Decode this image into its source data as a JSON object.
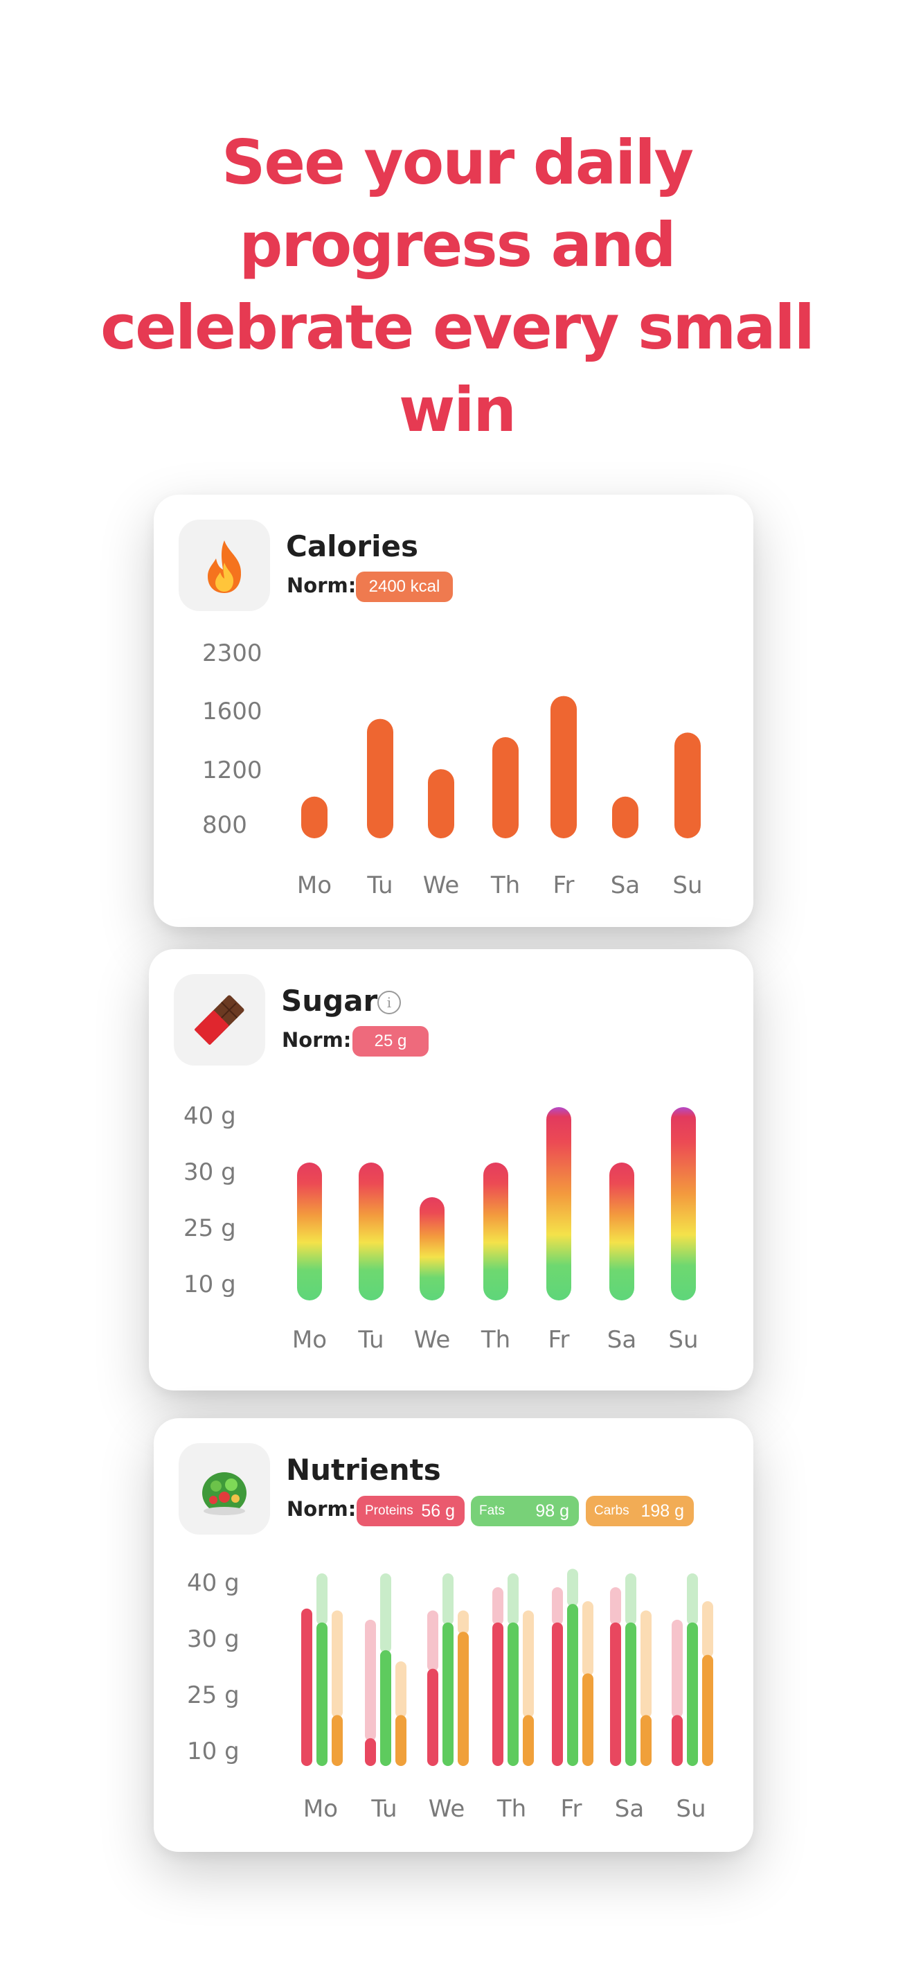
{
  "headline": {
    "line1": "See your daily",
    "line2": "progress and",
    "line3": "celebrate every small",
    "line4": "win"
  },
  "colors": {
    "headline": "#e63a52",
    "calories_bar": "#ee6631",
    "calories_pill": "#ef7a4f",
    "sugar_pill": "#ee6a7c",
    "protein": "#e8475f",
    "fat": "#5ecb5e",
    "carb": "#f0a03a"
  },
  "calories": {
    "icon": "fire-emoji",
    "title": "Calories",
    "norm_label": "Norm:",
    "norm_value": "2400 kcal"
  },
  "sugar": {
    "icon": "chocolate-bar-emoji",
    "title": "Sugar",
    "info_icon": "info-icon",
    "info_glyph": "i",
    "norm_label": "Norm:",
    "norm_value": "25 g"
  },
  "nutrients": {
    "icon": "salad-emoji",
    "title": "Nutrients",
    "norm_label": "Norm:",
    "proteins_label": "Proteins",
    "proteins_value": "56 g",
    "fats_label": "Fats",
    "fats_value": "98 g",
    "carbs_label": "Carbs",
    "carbs_value": "198 g"
  },
  "chart_data": [
    {
      "type": "bar",
      "name": "calories",
      "categories": [
        "Mo",
        "Tu",
        "We",
        "Th",
        "Fr",
        "Sa",
        "Su"
      ],
      "y_ticks": [
        "2300",
        "1600",
        "1200",
        "800"
      ],
      "values": [
        1150,
        2000,
        1450,
        1800,
        2250,
        1150,
        1850
      ],
      "ylim": [
        800,
        2300
      ]
    },
    {
      "type": "bar",
      "name": "sugar",
      "categories": [
        "Mo",
        "Tu",
        "We",
        "Th",
        "Fr",
        "Sa",
        "Su"
      ],
      "y_ticks": [
        "40 g",
        "30 g",
        "25 g",
        "10 g"
      ],
      "values": [
        30,
        30,
        25,
        30,
        40,
        30,
        40
      ],
      "ylim": [
        10,
        40
      ]
    },
    {
      "type": "bar",
      "name": "nutrients",
      "categories": [
        "Mo",
        "Tu",
        "We",
        "Th",
        "Fr",
        "Sa",
        "Su"
      ],
      "y_ticks": [
        "40 g",
        "30 g",
        "25 g",
        "10 g"
      ],
      "series": [
        {
          "name": "Proteins",
          "values": [
            34,
            6,
            21,
            31,
            31,
            31,
            11
          ],
          "remaining": [
            0,
            25,
            12,
            7,
            7,
            7,
            20
          ]
        },
        {
          "name": "Fats",
          "values": [
            31,
            25,
            31,
            31,
            35,
            31,
            31
          ],
          "remaining": [
            10,
            16,
            10,
            10,
            7,
            10,
            10
          ]
        },
        {
          "name": "Carbs",
          "values": [
            11,
            11,
            29,
            11,
            20,
            11,
            24
          ],
          "remaining": [
            22,
            11,
            4,
            22,
            15,
            22,
            11
          ]
        }
      ],
      "ylim": [
        0,
        40
      ]
    }
  ]
}
